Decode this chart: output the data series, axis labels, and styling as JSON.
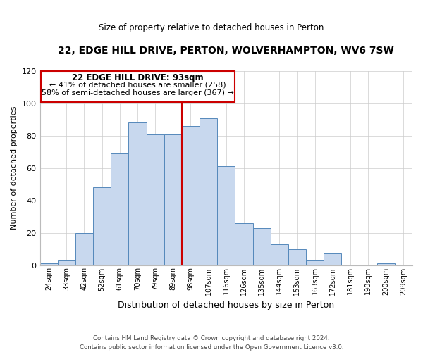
{
  "title": "22, EDGE HILL DRIVE, PERTON, WOLVERHAMPTON, WV6 7SW",
  "subtitle": "Size of property relative to detached houses in Perton",
  "xlabel": "Distribution of detached houses by size in Perton",
  "ylabel": "Number of detached properties",
  "bar_labels": [
    "24sqm",
    "33sqm",
    "42sqm",
    "52sqm",
    "61sqm",
    "70sqm",
    "79sqm",
    "89sqm",
    "98sqm",
    "107sqm",
    "116sqm",
    "126sqm",
    "135sqm",
    "144sqm",
    "153sqm",
    "163sqm",
    "172sqm",
    "181sqm",
    "190sqm",
    "200sqm",
    "209sqm"
  ],
  "bar_values": [
    1,
    3,
    20,
    48,
    69,
    88,
    81,
    81,
    86,
    91,
    61,
    26,
    23,
    13,
    10,
    3,
    7,
    0,
    0,
    1,
    0
  ],
  "bar_color": "#c8d8ee",
  "bar_edge_color": "#5588bb",
  "vline_color": "#cc0000",
  "annotation_title": "22 EDGE HILL DRIVE: 93sqm",
  "annotation_line1": "← 41% of detached houses are smaller (258)",
  "annotation_line2": "58% of semi-detached houses are larger (367) →",
  "annotation_box_color": "#cc0000",
  "annotation_fill": "#ffffff",
  "ylim": [
    0,
    120
  ],
  "yticks": [
    0,
    20,
    40,
    60,
    80,
    100,
    120
  ],
  "footnote1": "Contains HM Land Registry data © Crown copyright and database right 2024.",
  "footnote2": "Contains public sector information licensed under the Open Government Licence v3.0."
}
